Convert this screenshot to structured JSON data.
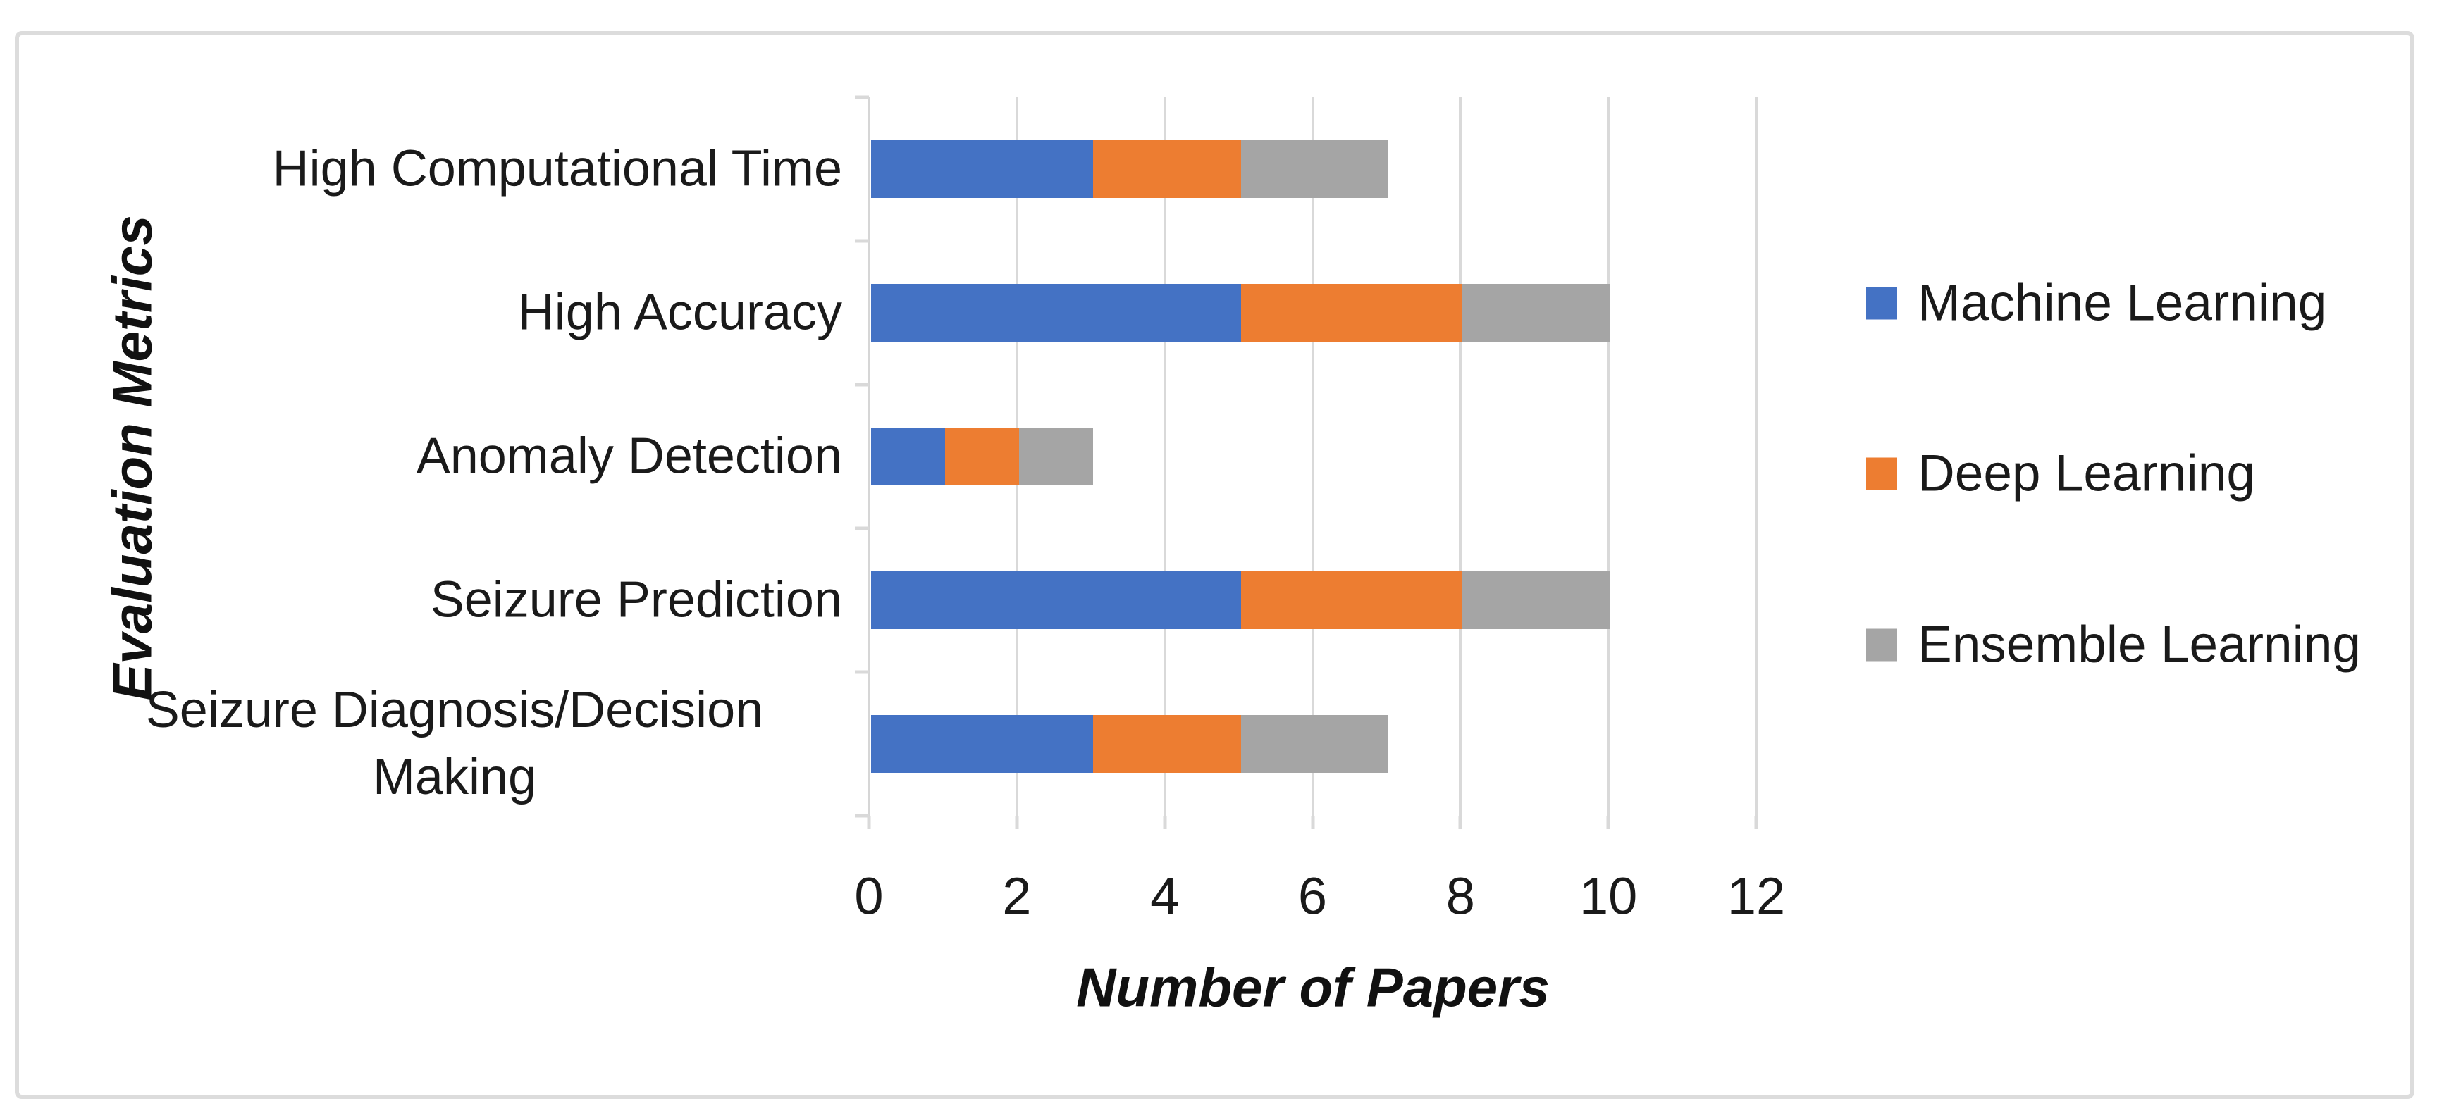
{
  "chart_data": {
    "type": "bar",
    "orientation": "horizontal-stacked",
    "title": "",
    "xlabel": "Number of Papers",
    "ylabel": "Evaluation Metrics",
    "xlim": [
      0,
      12
    ],
    "xticks": [
      "0",
      "2",
      "4",
      "6",
      "8",
      "10",
      "12"
    ],
    "grid": true,
    "legend_position": "right",
    "categories": [
      "High Computational Time",
      "High Accuracy",
      "Anomaly Detection",
      "Seizure Prediction",
      "Seizure Diagnosis/Decision Making"
    ],
    "series": [
      {
        "name": "Machine Learning",
        "color": "#4472C4",
        "values": [
          3,
          5,
          1,
          5,
          3
        ]
      },
      {
        "name": "Deep Learning",
        "color": "#ED7D31",
        "values": [
          2,
          3,
          1,
          3,
          2
        ]
      },
      {
        "name": "Ensemble Learning",
        "color": "#A5A5A5",
        "values": [
          2,
          2,
          1,
          2,
          2
        ]
      }
    ],
    "category_totals": [
      7,
      10,
      3,
      10,
      7
    ]
  },
  "style": {
    "gridline_color": "#d9d9d9",
    "frame_border_color": "#dcdcdc",
    "text_color": "#1a1a1a",
    "background": "#ffffff"
  }
}
